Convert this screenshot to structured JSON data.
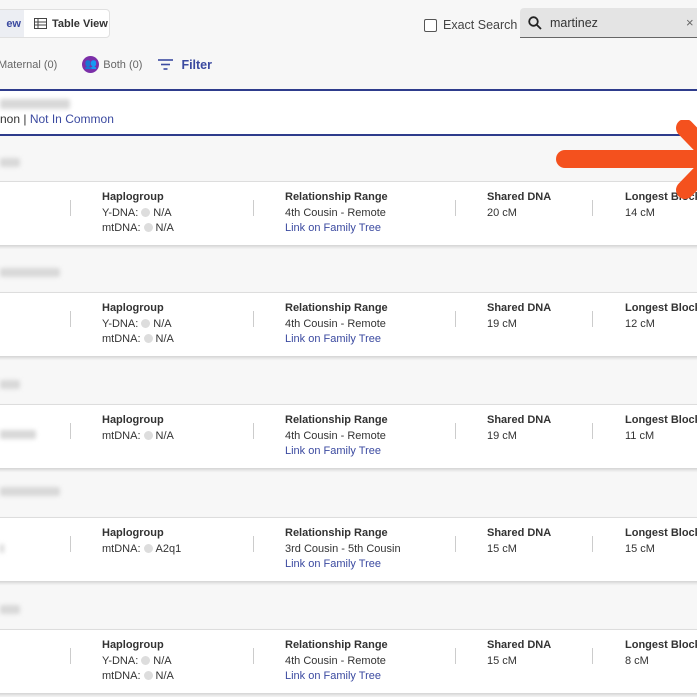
{
  "toolbar": {
    "list_view_label": "ew",
    "table_view_label": "Table View",
    "exact_search_label": "Exact Search",
    "search_value": "martinez",
    "clear_icon": "×"
  },
  "filters": {
    "maternal": "Maternal (0)",
    "both": "Both (0)",
    "filter_label": "Filter"
  },
  "common": {
    "in_common": "non",
    "separator": "|",
    "not_in_common": "Not In Common"
  },
  "labels": {
    "haplogroup": "Haplogroup",
    "relationship": "Relationship Range",
    "shared": "Shared DNA",
    "longest": "Longest Block",
    "link": "Link on Family Tree"
  },
  "matches": [
    {
      "haplo": [
        {
          "k": "Y-DNA:",
          "v": "N/A"
        },
        {
          "k": "mtDNA:",
          "v": "N/A"
        }
      ],
      "relationship": "4th Cousin - Remote",
      "shared": "20 cM",
      "longest": "14 cM"
    },
    {
      "haplo": [
        {
          "k": "Y-DNA:",
          "v": "N/A"
        },
        {
          "k": "mtDNA:",
          "v": "N/A"
        }
      ],
      "relationship": "4th Cousin - Remote",
      "shared": "19 cM",
      "longest": "12 cM"
    },
    {
      "haplo": [
        {
          "k": "mtDNA:",
          "v": "N/A"
        }
      ],
      "relationship": "4th Cousin - Remote",
      "shared": "19 cM",
      "longest": "11 cM"
    },
    {
      "haplo": [
        {
          "k": "mtDNA:",
          "v": "A2q1"
        }
      ],
      "relationship": "3rd Cousin - 5th Cousin",
      "shared": "15 cM",
      "longest": "15 cM"
    },
    {
      "haplo": [
        {
          "k": "Y-DNA:",
          "v": "N/A"
        },
        {
          "k": "mtDNA:",
          "v": "N/A"
        }
      ],
      "relationship": "4th Cousin - Remote",
      "shared": "15 cM",
      "longest": "8 cM"
    }
  ],
  "colors": {
    "accent": "#3b4aa0",
    "both": "#7b2fa8",
    "arrow": "#f4511e"
  }
}
